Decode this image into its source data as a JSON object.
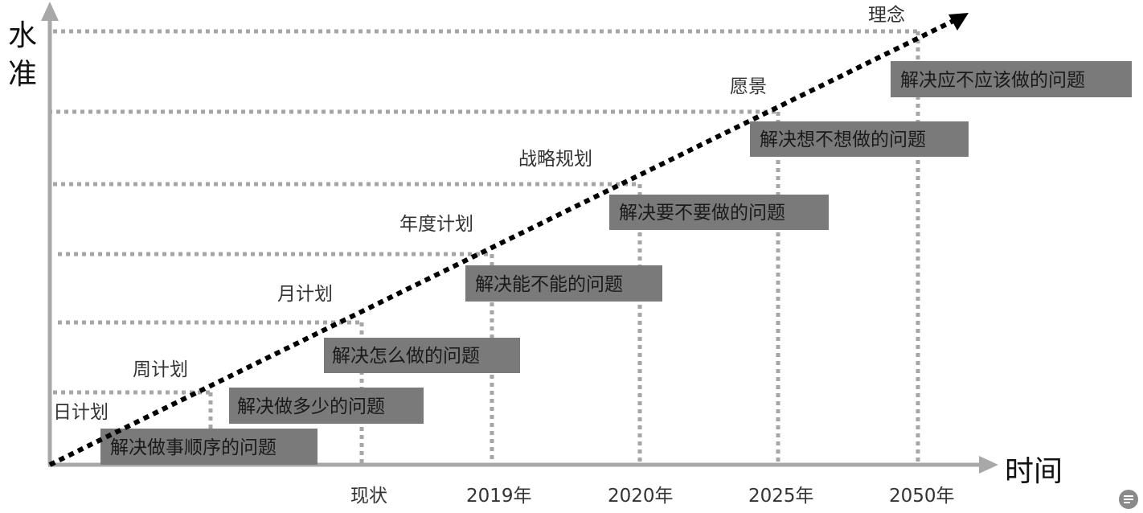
{
  "axes": {
    "y_label": "水准",
    "x_label": "时间"
  },
  "time_points": [
    "现状",
    "2019年",
    "2020年",
    "2025年",
    "2050年"
  ],
  "levels": [
    "日计划",
    "周计划",
    "月计划",
    "年度计划",
    "战略规划",
    "愿景",
    "理念"
  ],
  "problems": [
    "解决做事顺序的问题",
    "解决做多少的问题",
    "解决怎么做的问题",
    "解决能不能的问题",
    "解决要不要做的问题",
    "解决想不想做的问题",
    "解决应不应该做的问题"
  ],
  "colors": {
    "axis": "#a8a8a8",
    "guide": "#a6a6a6",
    "box": "#7a7a7a",
    "trend": "#000000"
  }
}
